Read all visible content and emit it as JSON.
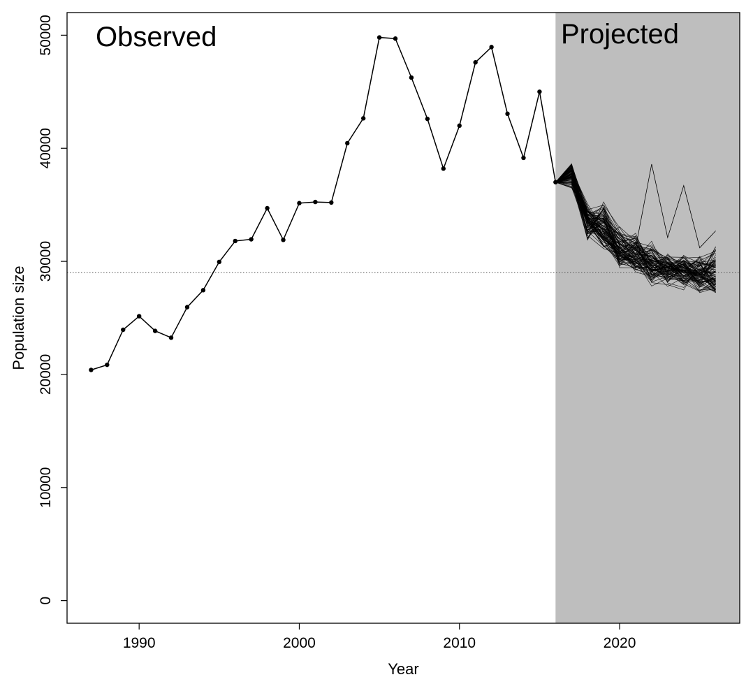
{
  "chart_data": {
    "type": "line",
    "xlabel": "Year",
    "ylabel": "Population size",
    "xlim": [
      1985.5,
      2027.5
    ],
    "ylim": [
      -2000,
      52000
    ],
    "x_ticks": [
      1990,
      2000,
      2010,
      2020
    ],
    "y_ticks": [
      0,
      10000,
      20000,
      30000,
      40000,
      50000
    ],
    "grid": false,
    "reference_line": {
      "y": 29000,
      "style": "dotted"
    },
    "regions": [
      {
        "label": "Observed",
        "from": 1985.5,
        "to": 2016,
        "color": "#ffffff"
      },
      {
        "label": "Projected",
        "from": 2016,
        "to": 2027.5,
        "color": "#bebebe"
      }
    ],
    "observed": {
      "x": [
        1987,
        1988,
        1989,
        1990,
        1991,
        1992,
        1993,
        1994,
        1995,
        1996,
        1997,
        1998,
        1999,
        2000,
        2001,
        2002,
        2003,
        2004,
        2005,
        2006,
        2007,
        2008,
        2009,
        2010,
        2011,
        2012,
        2013,
        2014,
        2015,
        2016
      ],
      "y": [
        20400,
        20850,
        23950,
        25150,
        23850,
        23250,
        25950,
        27450,
        29950,
        31800,
        31950,
        34700,
        31900,
        35150,
        35250,
        35200,
        40450,
        42650,
        49800,
        49700,
        46250,
        42600,
        38200,
        42000,
        47600,
        48950,
        43050,
        39150,
        45000,
        37000
      ]
    },
    "projected": {
      "x": [
        2016,
        2017,
        2018,
        2019,
        2020,
        2021,
        2022,
        2023,
        2024,
        2025,
        2026
      ],
      "mean": [
        37000,
        37600,
        33700,
        32700,
        30900,
        30600,
        29600,
        29400,
        29100,
        28800,
        28600
      ],
      "lower": [
        37000,
        36200,
        31800,
        31000,
        29200,
        28600,
        27800,
        27600,
        27300,
        27000,
        27000
      ],
      "upper": [
        37000,
        38800,
        35200,
        35800,
        33100,
        32900,
        31800,
        31000,
        30600,
        30800,
        31500
      ],
      "n_simulations": 80,
      "outlier_trajectory": [
        37000,
        37800,
        33600,
        32100,
        30700,
        31200,
        38600,
        32100,
        36700,
        31200,
        32700
      ]
    },
    "colors": {
      "observed": "#000000",
      "projected": "#000000",
      "projected_bg": "#bebebe",
      "reference_line": "#555555"
    }
  }
}
